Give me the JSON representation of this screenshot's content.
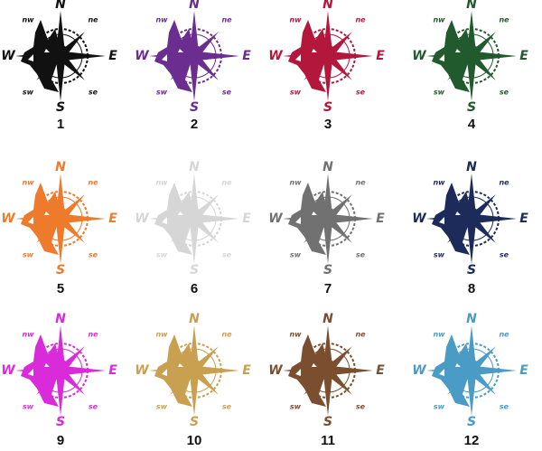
{
  "compass": {
    "n": "N",
    "e": "E",
    "s": "S",
    "w": "W",
    "nw": "nw",
    "ne": "ne",
    "sw": "sw",
    "se": "se"
  },
  "items": [
    {
      "label": "1",
      "color": "#111111"
    },
    {
      "label": "2",
      "color": "#6b2d8f"
    },
    {
      "label": "3",
      "color": "#b3183c"
    },
    {
      "label": "4",
      "color": "#215a2c"
    },
    {
      "label": "5",
      "color": "#ee7a2b"
    },
    {
      "label": "6",
      "color": "#d6d6d6"
    },
    {
      "label": "7",
      "color": "#717171"
    },
    {
      "label": "8",
      "color": "#1d2b5b"
    },
    {
      "label": "9",
      "color": "#d92bd9"
    },
    {
      "label": "10",
      "color": "#c9a04f"
    },
    {
      "label": "11",
      "color": "#7b4e2f"
    },
    {
      "label": "12",
      "color": "#4a9bc5"
    }
  ]
}
